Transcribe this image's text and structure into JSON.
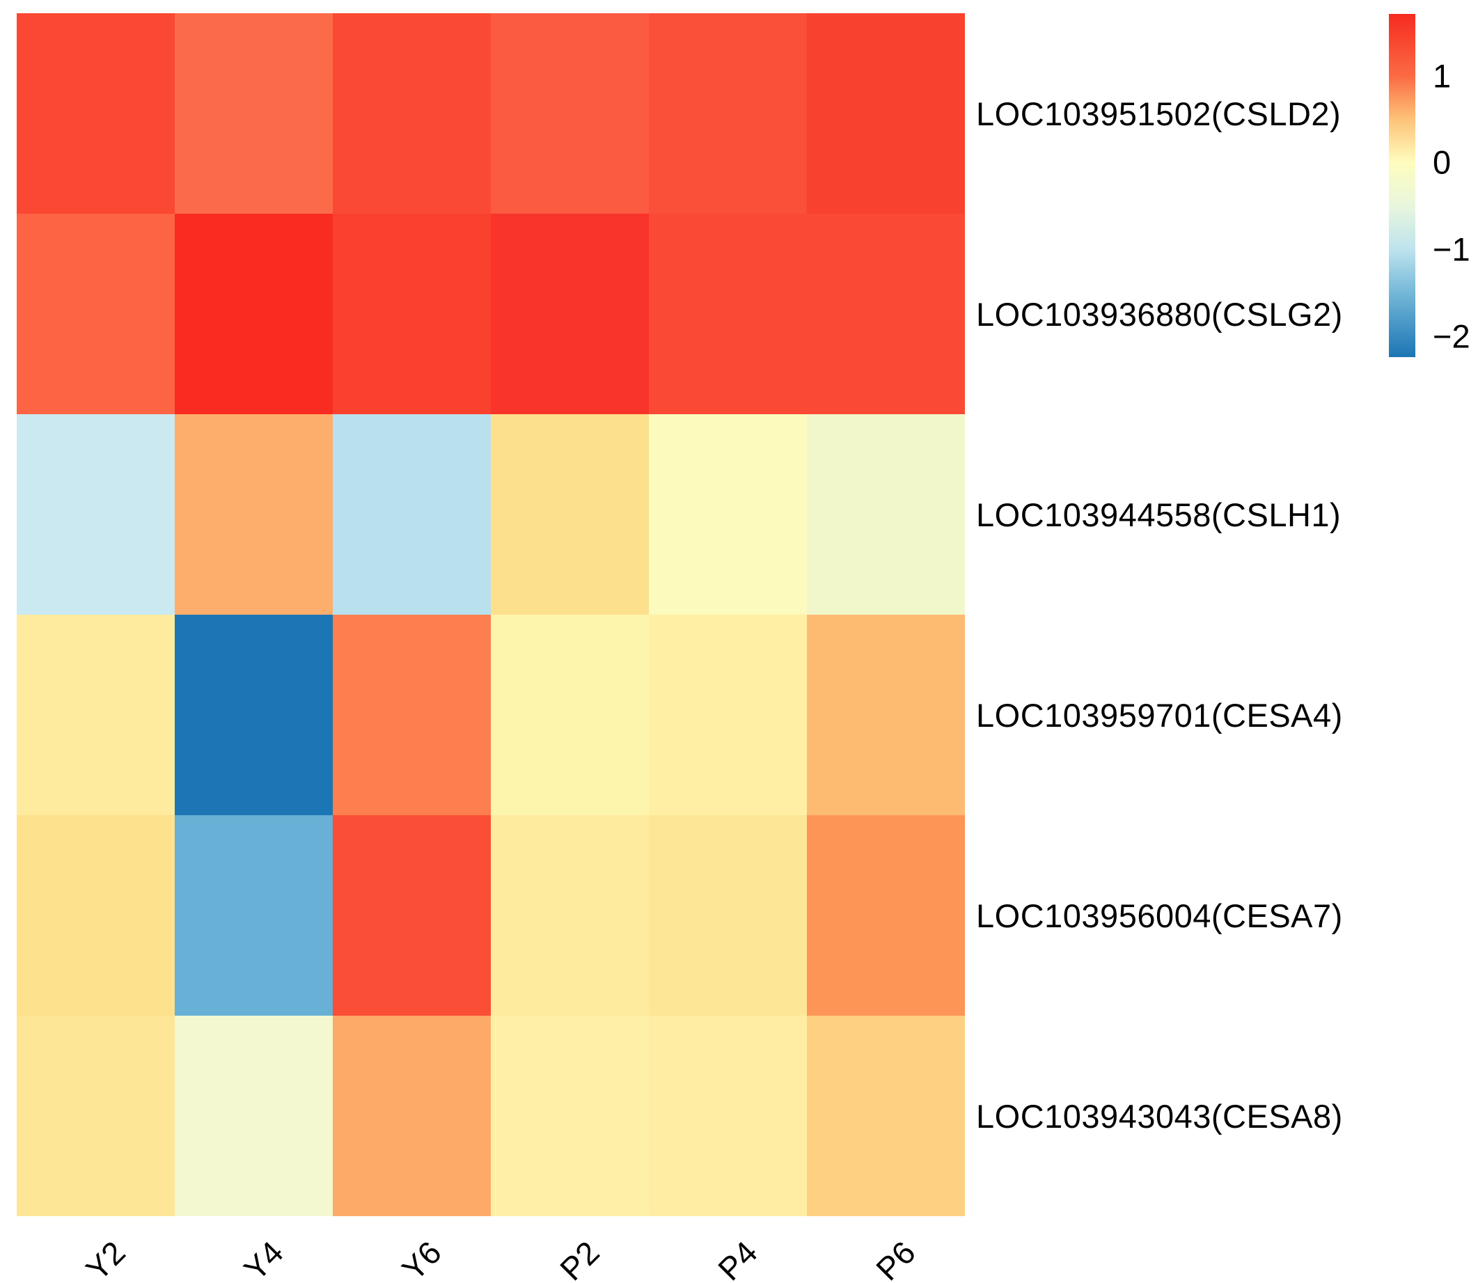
{
  "chart_data": {
    "type": "heatmap",
    "title": "",
    "xlabel": "",
    "ylabel": "",
    "columns": [
      "Y2",
      "Y4",
      "Y6",
      "P2",
      "P4",
      "P6"
    ],
    "rows": [
      "LOC103951502(CSLD2)",
      "LOC103936880(CSLG2)",
      "LOC103944558(CSLH1)",
      "LOC103959701(CESA4)",
      "LOC103956004(CESA7)",
      "LOC103943043(CESA8)"
    ],
    "values": [
      [
        1.48,
        1.2,
        1.47,
        1.35,
        1.43,
        1.55
      ],
      [
        1.25,
        1.67,
        1.5,
        1.62,
        1.45,
        1.45
      ],
      [
        -0.85,
        0.75,
        -1.05,
        0.4,
        0.0,
        -0.15
      ],
      [
        0.22,
        -2.2,
        1.0,
        0.08,
        0.15,
        0.6
      ],
      [
        0.4,
        -1.55,
        1.43,
        0.22,
        0.32,
        0.88
      ],
      [
        0.3,
        -0.12,
        0.78,
        0.13,
        0.18,
        0.5
      ]
    ],
    "cell_colors": [
      [
        "#fa4832",
        "#fc6b49",
        "#fa4a33",
        "#fb5b41",
        "#fa4f38",
        "#f94130"
      ],
      [
        "#fc6444",
        "#f92c21",
        "#fa412e",
        "#f9342a",
        "#fa4a35",
        "#fa4a35"
      ],
      [
        "#cbe9f1",
        "#fdae6c",
        "#b8e0ed",
        "#fde08d",
        "#fdfabe",
        "#f2f7cb"
      ],
      [
        "#feeb9d",
        "#1c76b5",
        "#fd7e4e",
        "#fef5ad",
        "#feefa5",
        "#fdbb71"
      ],
      [
        "#fde18d",
        "#68b0d5",
        "#fa4e37",
        "#feeb9e",
        "#fde695",
        "#fd9556"
      ],
      [
        "#fee697",
        "#f3f8d1",
        "#fda967",
        "#fef0a7",
        "#feeda2",
        "#fdd181"
      ]
    ],
    "colorbar": {
      "domain_min": -2.24,
      "domain_max": 1.71,
      "ticks": [
        {
          "label": "1",
          "value": 1
        },
        {
          "label": "0",
          "value": 0
        },
        {
          "label": "−1",
          "value": -1
        },
        {
          "label": "−2",
          "value": -2
        }
      ],
      "gradient_stops": [
        {
          "pos": 0,
          "color": "#f62b20"
        },
        {
          "pos": 18,
          "color": "#fb6a44"
        },
        {
          "pos": 30.6,
          "color": "#fdc277"
        },
        {
          "pos": 43.3,
          "color": "#fefdbe"
        },
        {
          "pos": 56,
          "color": "#e8f6dd"
        },
        {
          "pos": 68.6,
          "color": "#bee3ee"
        },
        {
          "pos": 81.3,
          "color": "#74b8d8"
        },
        {
          "pos": 100,
          "color": "#1b75b4"
        }
      ]
    },
    "layout": {
      "legend_position": "right",
      "x_tick_rotation": 45,
      "grid_lines": "off"
    }
  }
}
